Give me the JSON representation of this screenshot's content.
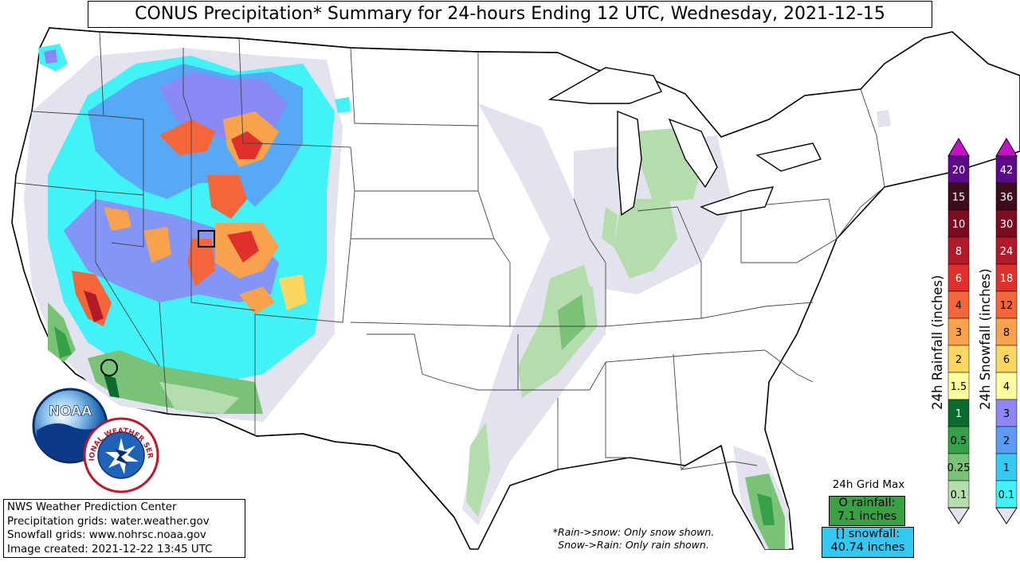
{
  "title": "CONUS Precipitation* Summary for 24-hours Ending 12 UTC, Wednesday, 2021-12-15",
  "credits": [
    "NWS Weather Prediction Center",
    "Precipitation grids: water.weather.gov",
    "Snowfall grids: www.nohrsc.noaa.gov",
    "Image created: 2021-12-22 13:45 UTC"
  ],
  "notes": [
    "*Rain->snow: Only snow shown.",
    "Snow->Rain: Only rain shown."
  ],
  "grid_max": {
    "heading": "24h Grid Max",
    "rain_line1": "O rainfall:",
    "rain_line2": "7.1 inches",
    "snow_line1": "[] snowfall:",
    "snow_line2": "40.74 inches"
  },
  "rain_scale": {
    "label": "24h Rainfall (inches)",
    "levels": [
      {
        "text": "20",
        "color": "#5c0b87"
      },
      {
        "text": "15",
        "color": "#3c0b1c"
      },
      {
        "text": "10",
        "color": "#7a0e20"
      },
      {
        "text": "8",
        "color": "#b21a2a"
      },
      {
        "text": "6",
        "color": "#e0302b"
      },
      {
        "text": "4",
        "color": "#f4653a"
      },
      {
        "text": "3",
        "color": "#f9a24e"
      },
      {
        "text": "2",
        "color": "#fbd760"
      },
      {
        "text": "1.5",
        "color": "#fdfe9c"
      },
      {
        "text": "1",
        "color": "#0b6a2e"
      },
      {
        "text": "0.5",
        "color": "#36a049"
      },
      {
        "text": "0.25",
        "color": "#79c277"
      },
      {
        "text": "0.1",
        "color": "#b4dcac"
      }
    ],
    "under_color": "#e3e3f0",
    "over_color": "#c511c8"
  },
  "snow_scale": {
    "label": "24h Snowfall (inches)",
    "levels": [
      {
        "text": "42",
        "color": "#5c0b87"
      },
      {
        "text": "36",
        "color": "#3c0b1c"
      },
      {
        "text": "30",
        "color": "#7a0e20"
      },
      {
        "text": "24",
        "color": "#b21a2a"
      },
      {
        "text": "18",
        "color": "#e0302b"
      },
      {
        "text": "12",
        "color": "#f4653a"
      },
      {
        "text": "8",
        "color": "#f9a24e"
      },
      {
        "text": "6",
        "color": "#fbd760"
      },
      {
        "text": "4",
        "color": "#fdfe9c"
      },
      {
        "text": "3",
        "color": "#8f86f6"
      },
      {
        "text": "2",
        "color": "#5c9bf4"
      },
      {
        "text": "1",
        "color": "#37c9f2"
      },
      {
        "text": "0.1",
        "color": "#41f2f7"
      }
    ],
    "under_color": "#e3e3f0",
    "over_color": "#c511c8"
  },
  "logos": {
    "noaa": "NOAA",
    "nws": "NATIONAL WEATHER SERVICE"
  }
}
